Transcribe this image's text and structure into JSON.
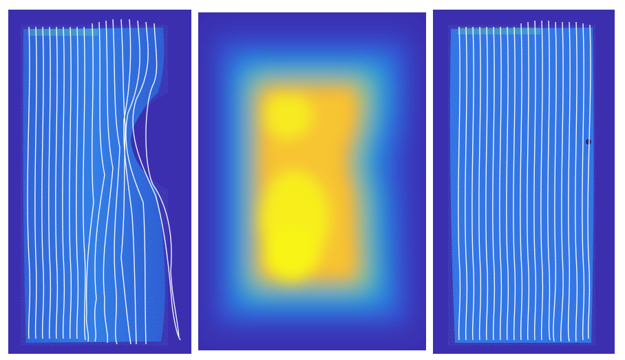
{
  "figure": {
    "panels": [
      {
        "name": "left-panel",
        "content": "particle-trajectories-with-obstacle"
      },
      {
        "name": "middle-panel",
        "content": "density-heatmap"
      },
      {
        "name": "right-panel",
        "content": "particle-trajectories-without-obstacle"
      }
    ],
    "colors": {
      "background": "#3b2fb0",
      "mid_blue": "#2f72e6",
      "cyan": "#21b3c9",
      "green": "#5ac96a",
      "orange": "#f5a43a",
      "yellow": "#f7f11a",
      "trajectory": "#ffffff"
    }
  }
}
